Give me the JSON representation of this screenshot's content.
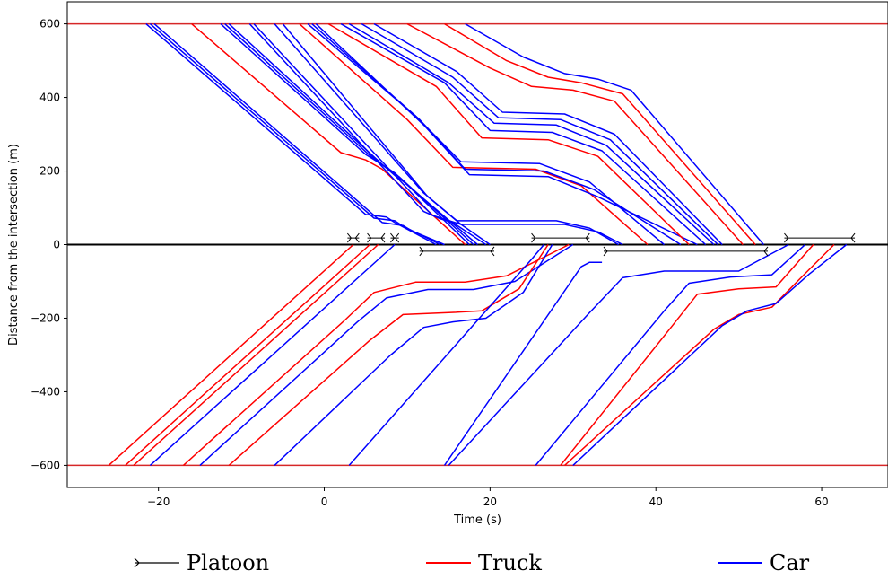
{
  "chart_data": {
    "type": "line",
    "xlabel": "Time (s)",
    "ylabel": "Distance from the intersection (m)",
    "xlim": [
      -31,
      68
    ],
    "ylim": [
      -660,
      660
    ],
    "xticks": [
      -20,
      0,
      20,
      40,
      60
    ],
    "yticks": [
      600,
      400,
      200,
      0,
      -200,
      -400,
      -600
    ],
    "xtick_labels": [
      "−20",
      "0",
      "20",
      "40",
      "60"
    ],
    "ytick_labels": [
      "600",
      "400",
      "200",
      "0",
      "−200",
      "−400",
      "−600"
    ],
    "boundary_lines": [
      600,
      -600
    ],
    "boundary_color": "#d62728",
    "intersection_line": 0,
    "legend": {
      "placement": "bottom",
      "entries": [
        {
          "label": "Platoon",
          "color": "#000000",
          "kind": "platoon"
        },
        {
          "label": "Truck",
          "color": "#ff0000",
          "kind": "line"
        },
        {
          "label": "Car",
          "color": "#0000ff",
          "kind": "line"
        }
      ]
    },
    "colors": {
      "Truck": "#ff0000",
      "Car": "#0000ff"
    },
    "platoons": [
      {
        "start": 2.8,
        "end": 4.2,
        "y": 18
      },
      {
        "start": 5.2,
        "end": 7.3,
        "y": 18
      },
      {
        "start": 8.0,
        "end": 9.0,
        "y": 18
      },
      {
        "start": 11.5,
        "end": 20.5,
        "y": -18
      },
      {
        "start": 25.0,
        "end": 32.0,
        "y": 18
      },
      {
        "start": 33.7,
        "end": 53.5,
        "y": -18
      },
      {
        "start": 55.5,
        "end": 64.0,
        "y": 18
      }
    ],
    "series": [
      {
        "type": "Car",
        "x": [
          -21.5,
          5.0,
          7.5,
          8.5,
          13.5
        ],
        "y": [
          600,
          82,
          75,
          60,
          0
        ]
      },
      {
        "type": "Car",
        "x": [
          -21.0,
          6.0,
          8.5,
          9.5,
          14.0
        ],
        "y": [
          600,
          72,
          65,
          50,
          0
        ]
      },
      {
        "type": "Car",
        "x": [
          -20.5,
          7.0,
          9.5,
          10.5,
          14.5
        ],
        "y": [
          600,
          60,
          52,
          38,
          0
        ]
      },
      {
        "type": "Truck",
        "x": [
          -16.0,
          2.0,
          5.0,
          7.0,
          17.0
        ],
        "y": [
          600,
          250,
          230,
          205,
          0
        ]
      },
      {
        "type": "Car",
        "x": [
          -12.5,
          5.0,
          7.5,
          8.5,
          17.5
        ],
        "y": [
          600,
          245,
          210,
          195,
          0
        ]
      },
      {
        "type": "Car",
        "x": [
          -12.0,
          6.0,
          8.0,
          9.0,
          18.0
        ],
        "y": [
          600,
          232,
          200,
          185,
          0
        ]
      },
      {
        "type": "Car",
        "x": [
          -11.5,
          7.0,
          8.5,
          9.5,
          18.5
        ],
        "y": [
          600,
          218,
          188,
          172,
          0
        ]
      },
      {
        "type": "Car",
        "x": [
          -9.0,
          12.0,
          14.0,
          15.5,
          19.5
        ],
        "y": [
          600,
          90,
          70,
          60,
          0
        ]
      },
      {
        "type": "Car",
        "x": [
          -8.5,
          13.0,
          15.5,
          16.5,
          20.0
        ],
        "y": [
          600,
          80,
          62,
          55,
          0
        ]
      },
      {
        "type": "Car",
        "x": [
          -6.0,
          12.0,
          16.0,
          28.0,
          32.0,
          35.5
        ],
        "y": [
          600,
          140,
          65,
          65,
          45,
          0
        ]
      },
      {
        "type": "Car",
        "x": [
          -5.0,
          12.5,
          16.5,
          29.0,
          33.0,
          36.0
        ],
        "y": [
          600,
          130,
          55,
          55,
          35,
          0
        ]
      },
      {
        "type": "Truck",
        "x": [
          -3.0,
          10.0,
          15.5,
          25.5,
          31.0,
          39.0
        ],
        "y": [
          600,
          340,
          210,
          205,
          160,
          0
        ]
      },
      {
        "type": "Car",
        "x": [
          -2.0,
          11.0,
          16.5,
          26.0,
          32.0,
          41.0
        ],
        "y": [
          600,
          350,
          225,
          220,
          170,
          0
        ]
      },
      {
        "type": "Car",
        "x": [
          -1.5,
          11.5,
          17.0,
          26.5,
          32.5,
          43.0
        ],
        "y": [
          600,
          340,
          205,
          200,
          150,
          0
        ]
      },
      {
        "type": "Car",
        "x": [
          -1.0,
          12.0,
          17.5,
          27.0,
          33.0,
          45.0
        ],
        "y": [
          600,
          325,
          190,
          185,
          130,
          0
        ]
      },
      {
        "type": "Truck",
        "x": [
          0.5,
          13.5,
          19.0,
          27.0,
          33.0,
          44.0
        ],
        "y": [
          600,
          430,
          290,
          285,
          240,
          0
        ]
      },
      {
        "type": "Car",
        "x": [
          2.0,
          14.5,
          20.0,
          27.5,
          33.5,
          46.0
        ],
        "y": [
          600,
          440,
          310,
          305,
          255,
          0
        ]
      },
      {
        "type": "Car",
        "x": [
          3.0,
          15.0,
          20.5,
          28.0,
          34.0,
          47.0
        ],
        "y": [
          600,
          440,
          330,
          325,
          270,
          0
        ]
      },
      {
        "type": "Car",
        "x": [
          4.5,
          15.5,
          21.0,
          28.5,
          34.5,
          47.5
        ],
        "y": [
          600,
          455,
          345,
          340,
          285,
          0
        ]
      },
      {
        "type": "Car",
        "x": [
          6.0,
          16.0,
          21.5,
          29.0,
          35.0,
          48.0
        ],
        "y": [
          600,
          470,
          360,
          355,
          300,
          0
        ]
      },
      {
        "type": "Truck",
        "x": [
          10.0,
          20.0,
          25.0,
          30.0,
          35.0,
          50.5
        ],
        "y": [
          600,
          480,
          430,
          420,
          390,
          0
        ]
      },
      {
        "type": "Truck",
        "x": [
          14.5,
          22.0,
          27.0,
          31.0,
          36.0,
          52.0
        ],
        "y": [
          600,
          500,
          455,
          440,
          410,
          0
        ]
      },
      {
        "type": "Car",
        "x": [
          17.0,
          24.0,
          29.0,
          33.0,
          37.0,
          53.0
        ],
        "y": [
          600,
          510,
          465,
          450,
          420,
          0
        ]
      },
      {
        "type": "Truck",
        "x": [
          -26.0,
          3.5
        ],
        "y": [
          -600,
          0
        ]
      },
      {
        "type": "Truck",
        "x": [
          -24.0,
          5.5
        ],
        "y": [
          -600,
          0
        ]
      },
      {
        "type": "Truck",
        "x": [
          -23.0,
          6.5
        ],
        "y": [
          -600,
          0
        ]
      },
      {
        "type": "Car",
        "x": [
          -21.0,
          8.5
        ],
        "y": [
          -600,
          0
        ]
      },
      {
        "type": "Truck",
        "x": [
          -17.0,
          2.5,
          6.0,
          11.0,
          17.0,
          22.0,
          29.5
        ],
        "y": [
          -600,
          -205,
          -130,
          -102,
          -102,
          -85,
          0
        ]
      },
      {
        "type": "Car",
        "x": [
          -15.0,
          4.0,
          7.5,
          12.5,
          18.0,
          23.0,
          30.0
        ],
        "y": [
          -600,
          -210,
          -145,
          -122,
          -122,
          -100,
          0
        ]
      },
      {
        "type": "Truck",
        "x": [
          -11.5,
          5.5,
          9.5,
          15.0,
          19.0,
          23.5,
          27.0
        ],
        "y": [
          -600,
          -260,
          -190,
          -185,
          -180,
          -120,
          0
        ]
      },
      {
        "type": "Car",
        "x": [
          -6.0,
          8.0,
          12.0,
          15.5,
          19.5,
          24.0,
          27.5
        ],
        "y": [
          -600,
          -300,
          -225,
          -210,
          -200,
          -130,
          0
        ]
      },
      {
        "type": "Car",
        "x": [
          3.0,
          25.0,
          26.5
        ],
        "y": [
          -600,
          -40,
          0
        ]
      },
      {
        "type": "Car",
        "x": [
          14.5,
          31.0,
          32.0,
          33.5
        ],
        "y": [
          -600,
          -60,
          -48,
          -48
        ]
      },
      {
        "type": "Car",
        "x": [
          15.0,
          32.0,
          36.0,
          41.0,
          50.0,
          56.0
        ],
        "y": [
          -600,
          -185,
          -90,
          -72,
          -72,
          0
        ]
      },
      {
        "type": "Car",
        "x": [
          25.5,
          41.0,
          44.0,
          49.0,
          54.0,
          58.0
        ],
        "y": [
          -600,
          -180,
          -105,
          -88,
          -82,
          0
        ]
      },
      {
        "type": "Truck",
        "x": [
          28.5,
          42.0,
          45.0,
          50.0,
          54.5,
          59.0
        ],
        "y": [
          -600,
          -220,
          -135,
          -120,
          -115,
          0
        ]
      },
      {
        "type": "Truck",
        "x": [
          29.0,
          47.0,
          50.0,
          54.0,
          57.5,
          61.5
        ],
        "y": [
          -600,
          -230,
          -190,
          -170,
          -90,
          0
        ]
      },
      {
        "type": "Car",
        "x": [
          30.0,
          48.0,
          51.0,
          54.5,
          58.5,
          63.0
        ],
        "y": [
          -600,
          -220,
          -180,
          -160,
          -80,
          0
        ]
      }
    ]
  }
}
